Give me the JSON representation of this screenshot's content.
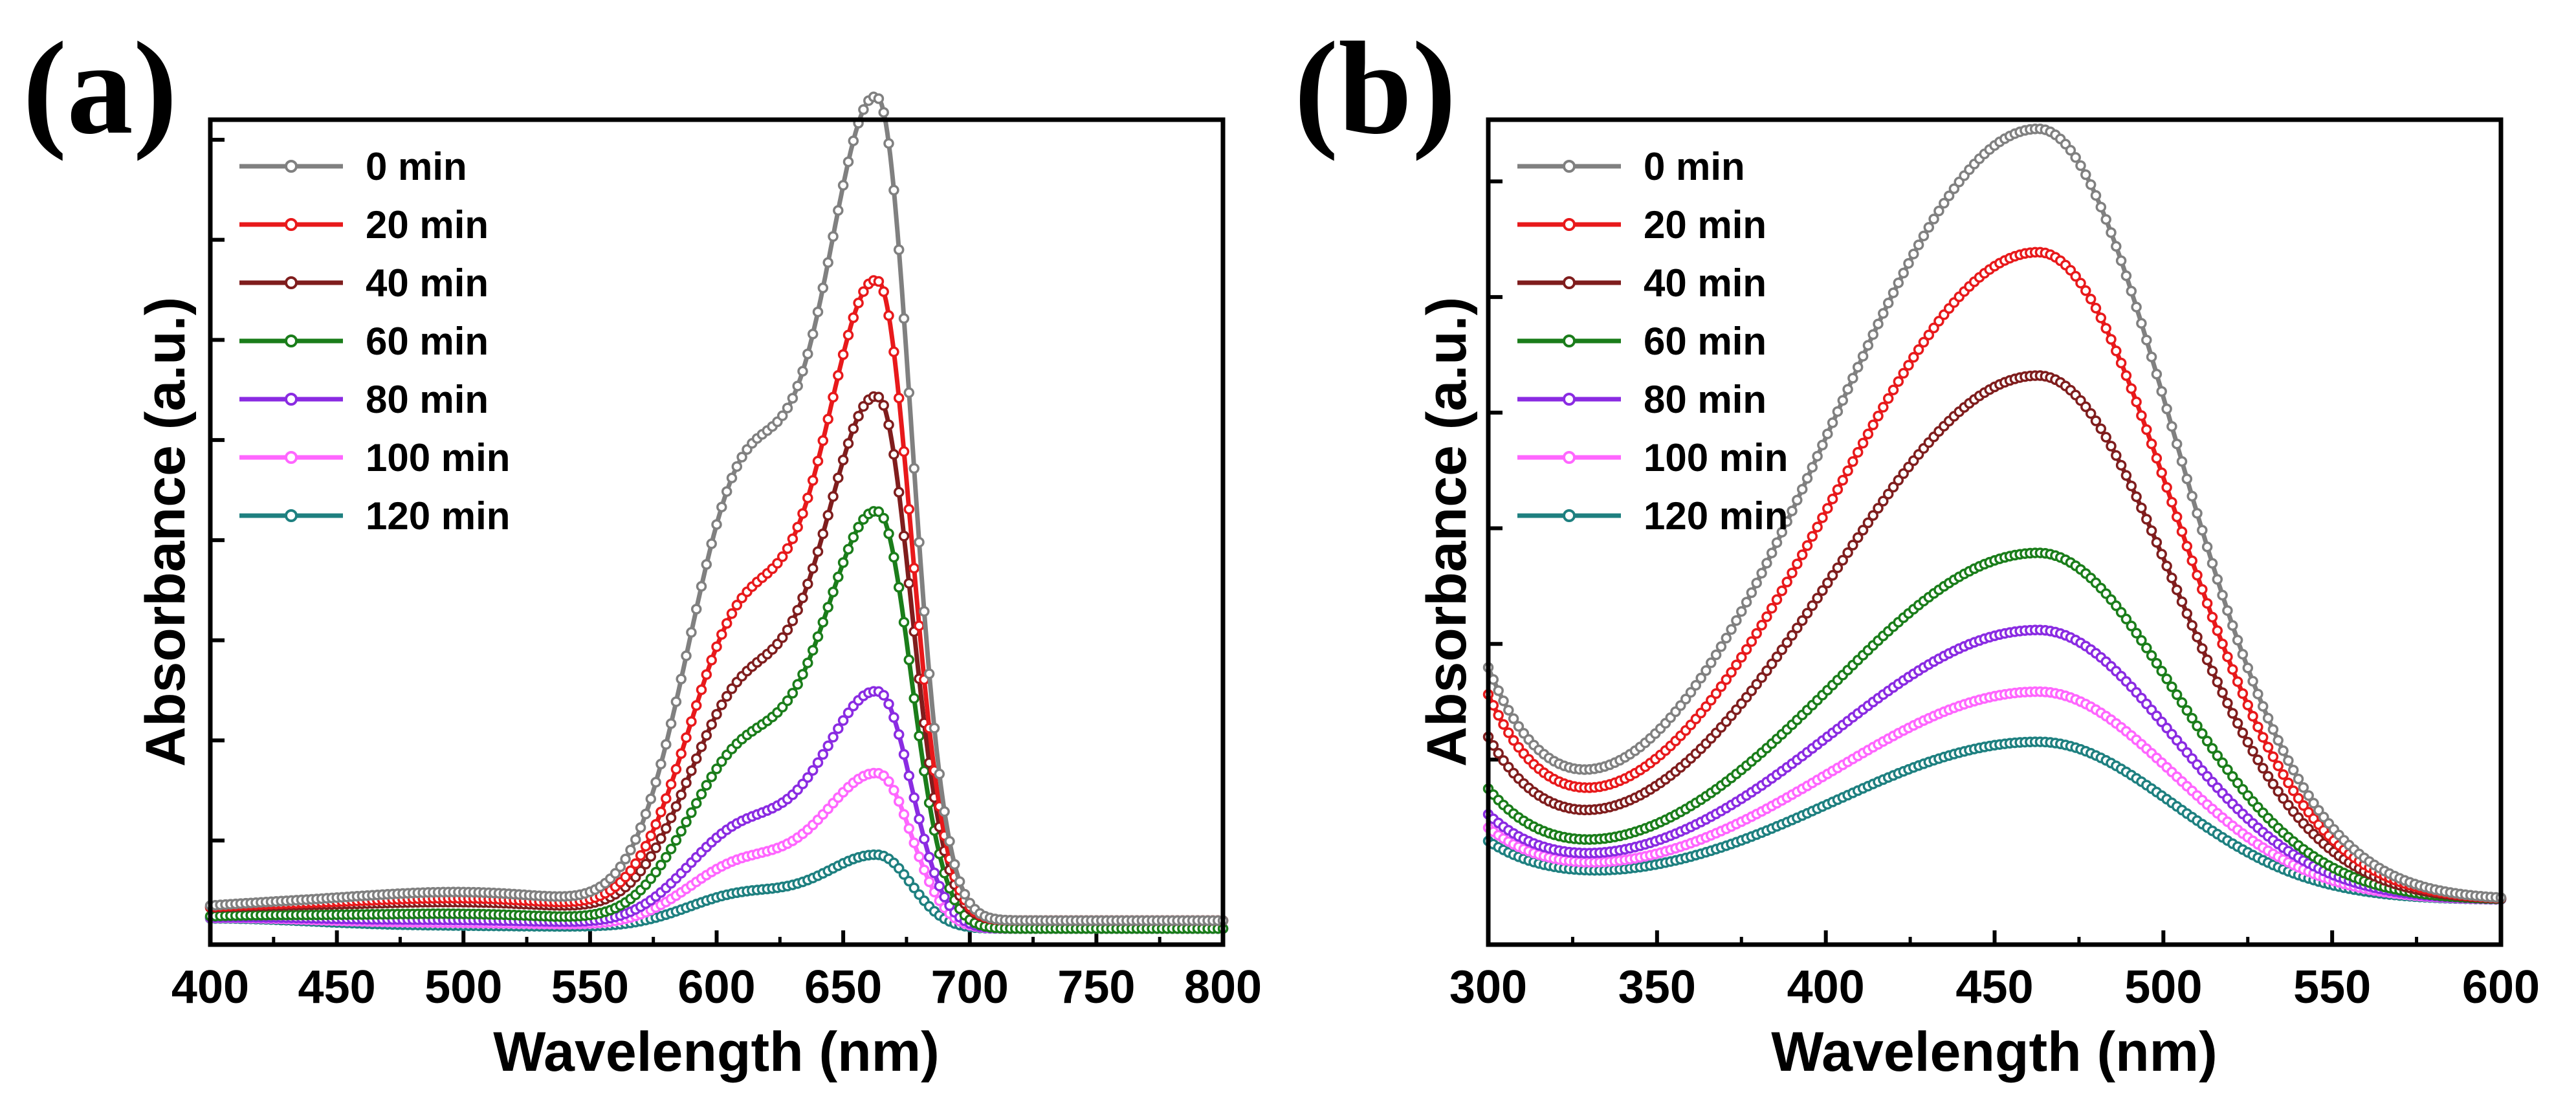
{
  "panels": [
    {
      "label": "(a)"
    },
    {
      "label": "(b)"
    }
  ],
  "chart_data": [
    {
      "type": "line",
      "panel": "(a)",
      "xlabel": "Wavelength (nm)",
      "ylabel": "Absorbance (a.u.)",
      "xlim": [
        400,
        800
      ],
      "ylim": [
        -0.03,
        1.0
      ],
      "xticks": [
        400,
        450,
        500,
        550,
        600,
        650,
        700,
        750,
        800
      ],
      "xtick_labels": [
        "400",
        "450",
        "500",
        "550",
        "600",
        "650",
        "700",
        "750",
        "800"
      ],
      "yticks": [
        0.1,
        0.225,
        0.35,
        0.475,
        0.6,
        0.725,
        0.85,
        0.975
      ],
      "ytick_labels_shown": false,
      "legend_position": "top-left",
      "curve_model": "two-band (shoulder ~612 nm, peak ~664 nm)",
      "series": [
        {
          "name": "0 min",
          "color": "#808080",
          "peak": 1.0,
          "shoulder": 0.64,
          "base": 0.0
        },
        {
          "name": "20 min",
          "color": "#e8191b",
          "peak": 0.78,
          "shoulder": 0.44,
          "base": 0.0
        },
        {
          "name": "40 min",
          "color": "#7f1d1d",
          "peak": 0.64,
          "shoulder": 0.33,
          "base": 0.0
        },
        {
          "name": "60 min",
          "color": "#1a7d1a",
          "peak": 0.51,
          "shoulder": 0.255,
          "base": -0.01
        },
        {
          "name": "80 min",
          "color": "#8a2be2",
          "peak": 0.29,
          "shoulder": 0.145,
          "base": -0.01
        },
        {
          "name": "100 min",
          "color": "#ff66ff",
          "peak": 0.19,
          "shoulder": 0.095,
          "base": -0.01
        },
        {
          "name": "120 min",
          "color": "#1e8080",
          "peak": 0.09,
          "shoulder": 0.05,
          "base": -0.01
        }
      ]
    },
    {
      "type": "line",
      "panel": "(b)",
      "xlabel": "Wavelength (nm)",
      "ylabel": "Absorbance (a.u.)",
      "xlim": [
        300,
        600
      ],
      "ylim": [
        -0.04,
        1.03
      ],
      "xticks": [
        300,
        350,
        400,
        450,
        500,
        550,
        600
      ],
      "xtick_labels": [
        "300",
        "350",
        "400",
        "450",
        "500",
        "550",
        "600"
      ],
      "yticks": [
        0.2,
        0.35,
        0.5,
        0.65,
        0.8,
        0.95
      ],
      "ytick_labels_shown": false,
      "legend_position": "top-left",
      "curve_model": "single band (peak ~463 nm, minimum ~338 nm)",
      "series": [
        {
          "name": "0 min",
          "color": "#808080",
          "peak": 1.0,
          "uv_edge": 0.27
        },
        {
          "name": "20 min",
          "color": "#e8191b",
          "peak": 0.84,
          "uv_edge": 0.24
        },
        {
          "name": "40 min",
          "color": "#7f1d1d",
          "peak": 0.68,
          "uv_edge": 0.19
        },
        {
          "name": "60 min",
          "color": "#1a7d1a",
          "peak": 0.45,
          "uv_edge": 0.13
        },
        {
          "name": "80 min",
          "color": "#8a2be2",
          "peak": 0.35,
          "uv_edge": 0.1
        },
        {
          "name": "100 min",
          "color": "#ff66ff",
          "peak": 0.27,
          "uv_edge": 0.085
        },
        {
          "name": "120 min",
          "color": "#1e8080",
          "peak": 0.205,
          "uv_edge": 0.07
        }
      ]
    }
  ]
}
